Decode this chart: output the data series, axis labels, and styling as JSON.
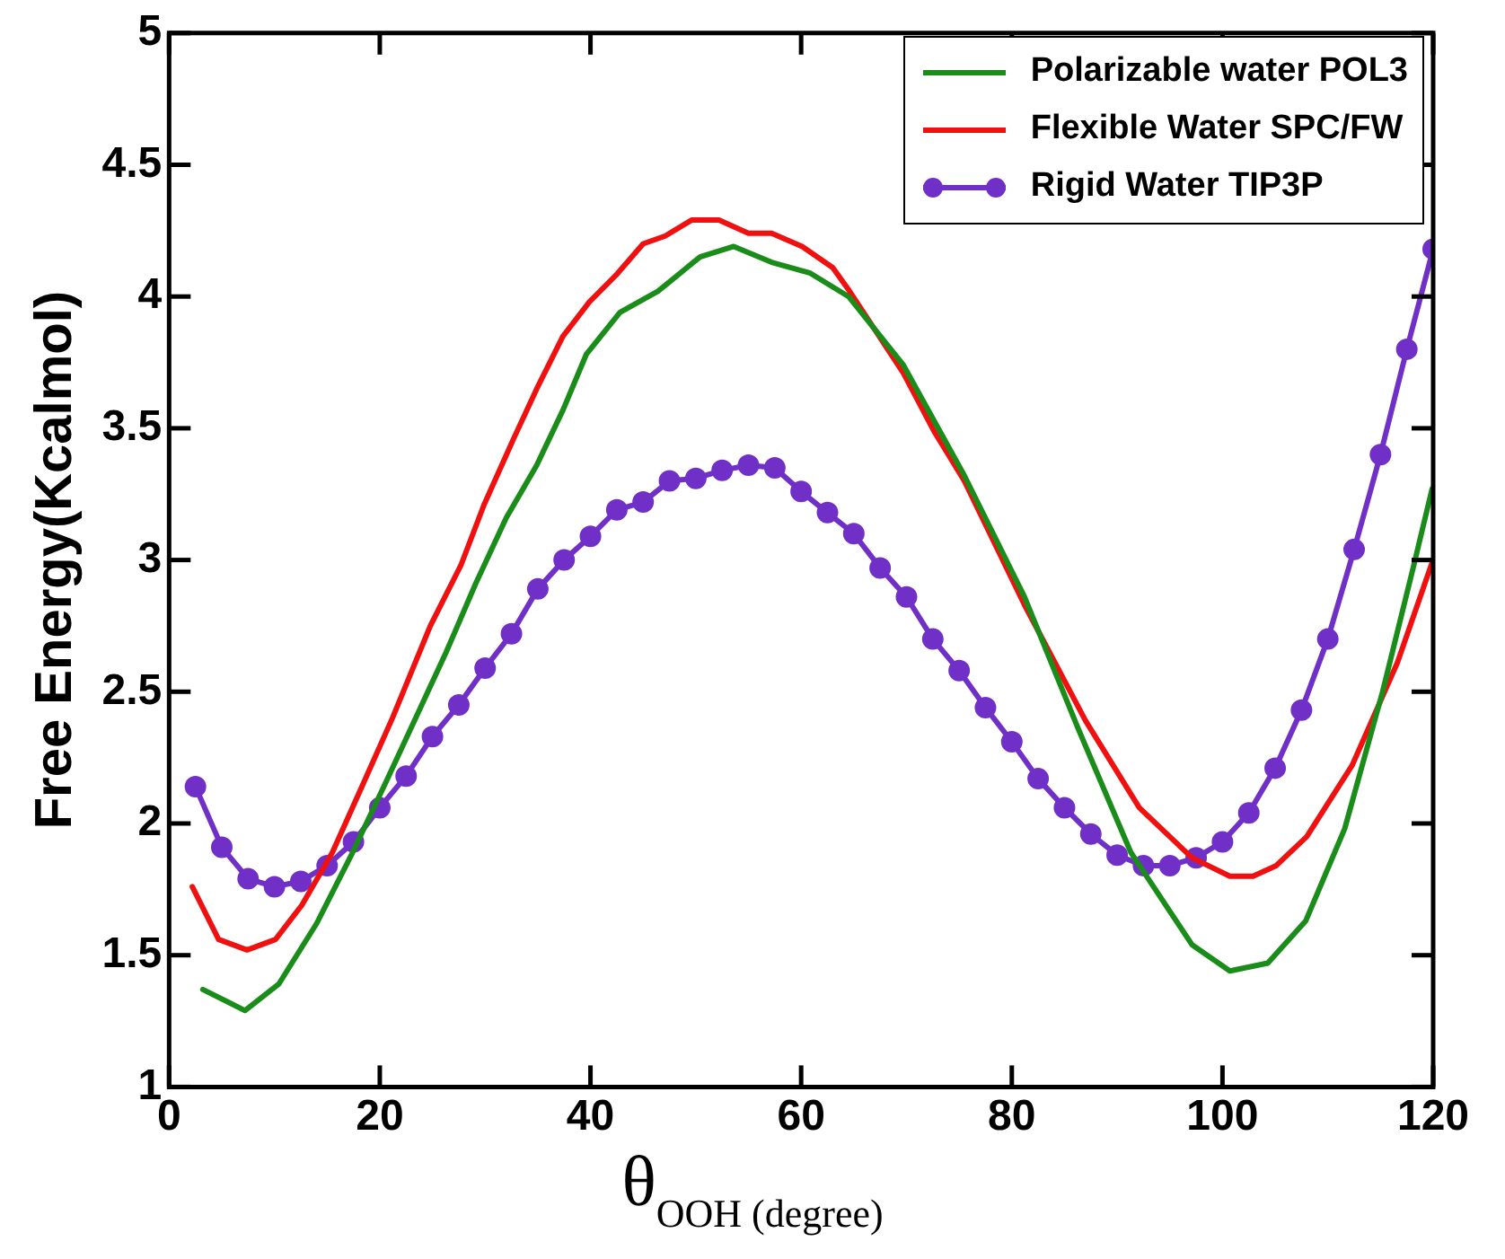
{
  "chart_data": {
    "type": "line",
    "xlabel": "θ$_{OOH (degree)}$",
    "ylabel": "Free Energy(Kcalmol)",
    "xlim": [
      0,
      120
    ],
    "xticks": [
      0,
      20,
      40,
      60,
      80,
      100,
      120
    ],
    "ylim": [
      1,
      5
    ],
    "yticks": [
      1,
      1.5,
      2,
      2.5,
      3,
      3.5,
      4,
      4.5,
      5
    ],
    "grid": false,
    "legend": "top right",
    "line_style": "solid",
    "series": [
      {
        "name": "Polarizable water POL3",
        "color": "#1a8c1a",
        "marker": "none",
        "x": [
          3.2,
          7.2,
          10.4,
          14.0,
          17.3,
          20.5,
          23.4,
          26.3,
          29.1,
          32,
          34.9,
          37.4,
          39.6,
          42.8,
          46.4,
          50.4,
          53.6,
          57.2,
          60.8,
          64.5,
          69.7,
          75.5,
          81.2,
          86.3,
          91.3,
          97.1,
          100.7,
          104.3,
          107.9,
          111.6,
          115.2,
          118.1,
          119.9
        ],
        "values": [
          1.37,
          1.29,
          1.39,
          1.62,
          1.88,
          2.15,
          2.4,
          2.65,
          2.91,
          3.16,
          3.36,
          3.57,
          3.78,
          3.94,
          4.02,
          4.15,
          4.19,
          4.13,
          4.09,
          4.0,
          3.74,
          3.32,
          2.86,
          2.36,
          1.89,
          1.54,
          1.44,
          1.47,
          1.63,
          1.98,
          2.5,
          2.97,
          3.27
        ]
      },
      {
        "name": "Flexible Water SPC/FW",
        "color": "#f01010",
        "marker": "none",
        "x": [
          2.2,
          4.7,
          7.4,
          10.1,
          12.6,
          15.5,
          18.3,
          21.2,
          24.8,
          27.7,
          29.9,
          32.7,
          34.9,
          37.4,
          39.9,
          42.4,
          45,
          47.1,
          49.6,
          52.2,
          55,
          57.2,
          60.1,
          63,
          64.6,
          69.7,
          72.6,
          75.5,
          81.2,
          87,
          92.1,
          97.1,
          100.7,
          102.9,
          105.1,
          108,
          112.3,
          116.6,
          119.9
        ],
        "values": [
          1.76,
          1.56,
          1.52,
          1.56,
          1.69,
          1.89,
          2.14,
          2.4,
          2.75,
          2.98,
          3.21,
          3.46,
          3.65,
          3.85,
          3.98,
          4.08,
          4.2,
          4.23,
          4.29,
          4.29,
          4.24,
          4.24,
          4.19,
          4.11,
          4.02,
          3.71,
          3.49,
          3.3,
          2.83,
          2.39,
          2.06,
          1.87,
          1.8,
          1.8,
          1.84,
          1.95,
          2.22,
          2.61,
          2.99
        ]
      },
      {
        "name": "Rigid Water TIP3P",
        "color": "#7030c8",
        "marker": "circle",
        "x": [
          2.5,
          5,
          7.5,
          10,
          12.5,
          15,
          17.5,
          20,
          22.5,
          25,
          27.5,
          30,
          32.5,
          35,
          37.5,
          40,
          42.5,
          45,
          47.5,
          50,
          52.5,
          55,
          57.5,
          60,
          62.5,
          65,
          67.5,
          70,
          72.5,
          75,
          77.5,
          80,
          82.5,
          85,
          87.5,
          90,
          92.5,
          95,
          97.5,
          100,
          102.5,
          105,
          107.5,
          110,
          112.5,
          115,
          117.5,
          120
        ],
        "values": [
          2.14,
          1.91,
          1.79,
          1.76,
          1.78,
          1.84,
          1.93,
          2.06,
          2.18,
          2.33,
          2.45,
          2.59,
          2.72,
          2.89,
          3.0,
          3.09,
          3.19,
          3.22,
          3.3,
          3.31,
          3.34,
          3.36,
          3.35,
          3.26,
          3.18,
          3.1,
          2.97,
          2.86,
          2.7,
          2.58,
          2.44,
          2.31,
          2.17,
          2.06,
          1.96,
          1.88,
          1.84,
          1.84,
          1.87,
          1.93,
          2.04,
          2.21,
          2.43,
          2.7,
          3.04,
          3.4,
          3.8,
          4.18
        ]
      }
    ]
  }
}
